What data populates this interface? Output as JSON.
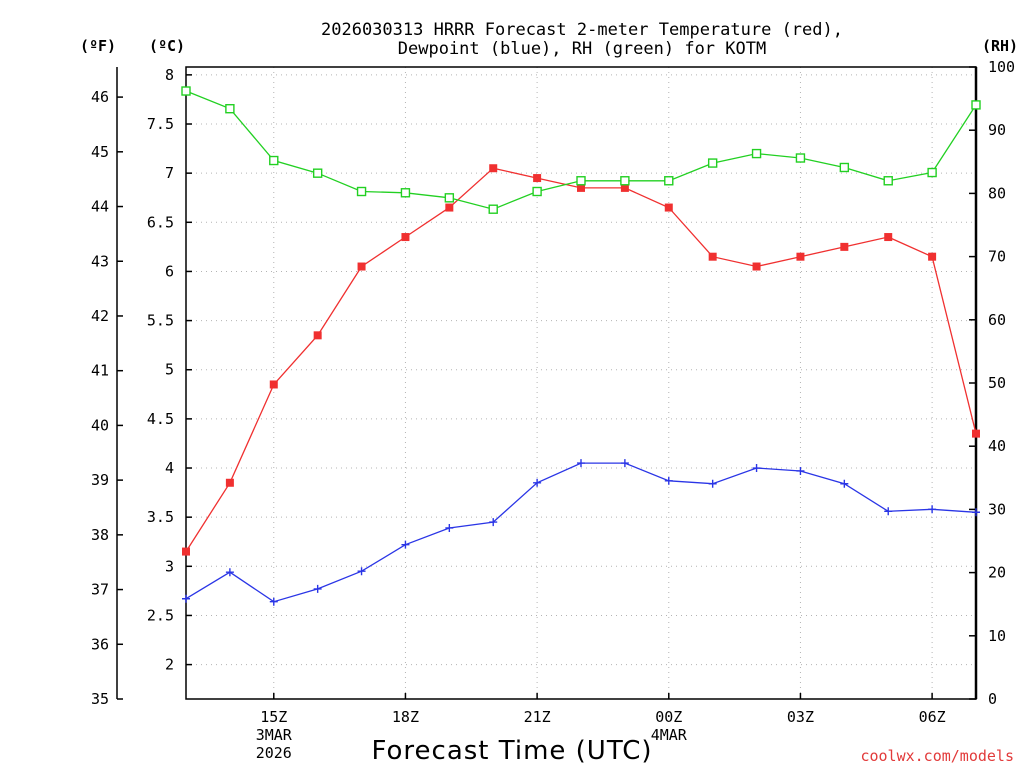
{
  "chart_data": {
    "type": "line",
    "title_lines": [
      "2026030313 HRRR Forecast 2-meter Temperature (red),",
      "Dewpoint (blue), RH (green) for KOTM"
    ],
    "xlabel": "Forecast Time (UTC)",
    "credit": "coolwx.com/models",
    "x_hours": [
      13,
      14,
      15,
      16,
      17,
      18,
      19,
      20,
      21,
      22,
      23,
      24,
      25,
      26,
      27,
      28,
      29,
      30,
      31
    ],
    "x_range": [
      13,
      31
    ],
    "x_ticks": [
      {
        "hour": 15,
        "lines": [
          "15Z",
          "3MAR",
          "2026"
        ]
      },
      {
        "hour": 18,
        "lines": [
          "18Z"
        ]
      },
      {
        "hour": 21,
        "lines": [
          "21Z"
        ]
      },
      {
        "hour": 24,
        "lines": [
          "00Z",
          "4MAR"
        ]
      },
      {
        "hour": 27,
        "lines": [
          "03Z"
        ]
      },
      {
        "hour": 30,
        "lines": [
          "06Z"
        ]
      }
    ],
    "left_axes": {
      "celsius": {
        "label": "(ºC)",
        "ylim": [
          1.65,
          8.08
        ],
        "ticks": [
          "2",
          "2.5",
          "3",
          "3.5",
          "4",
          "4.5",
          "5",
          "5.5",
          "6",
          "6.5",
          "7",
          "7.5",
          "8"
        ]
      },
      "fahrenheit": {
        "label": "(ºF)",
        "ylim": [
          35.0,
          46.55
        ],
        "ticks": [
          "35",
          "36",
          "37",
          "38",
          "39",
          "40",
          "41",
          "42",
          "43",
          "44",
          "45",
          "46"
        ]
      }
    },
    "right_axis": {
      "label": "(RH)",
      "ylim": [
        0,
        100
      ],
      "ticks": [
        "0",
        "10",
        "20",
        "30",
        "40",
        "50",
        "60",
        "70",
        "80",
        "90",
        "100"
      ]
    },
    "series": [
      {
        "name": "Temperature",
        "unit": "C",
        "color": "#f03030",
        "marker": "filled-square",
        "values": [
          3.15,
          3.85,
          4.85,
          5.35,
          6.05,
          6.35,
          6.65,
          7.05,
          6.95,
          6.85,
          6.85,
          6.65,
          6.15,
          6.05,
          6.15,
          6.25,
          6.35,
          6.15,
          4.35
        ]
      },
      {
        "name": "Dewpoint",
        "unit": "C",
        "color": "#2a35e6",
        "marker": "plus",
        "values": [
          2.67,
          2.94,
          2.64,
          2.77,
          2.95,
          3.22,
          3.39,
          3.45,
          3.85,
          4.05,
          4.05,
          3.87,
          3.84,
          4.0,
          3.97,
          3.84,
          3.56,
          3.58,
          3.55
        ]
      },
      {
        "name": "RH",
        "unit": "%",
        "color": "#22d022",
        "marker": "open-square",
        "values": [
          96.2,
          93.4,
          85.2,
          83.2,
          80.3,
          80.1,
          79.3,
          77.5,
          80.3,
          82.0,
          82.0,
          82.0,
          84.8,
          86.3,
          85.6,
          84.1,
          82.0,
          83.3,
          94.0
        ]
      }
    ]
  }
}
